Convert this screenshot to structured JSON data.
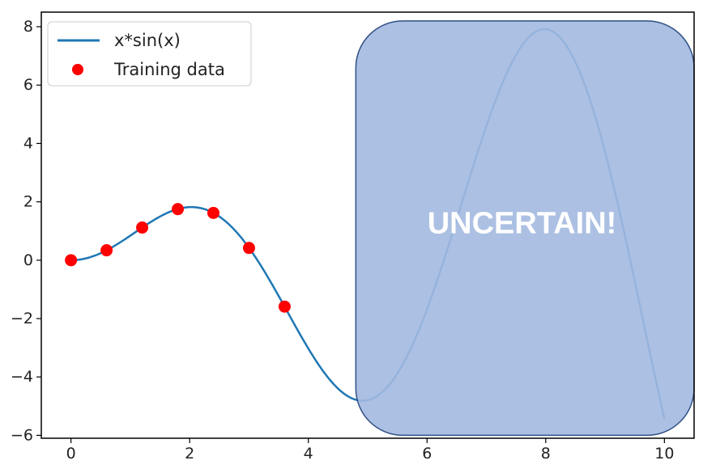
{
  "chart_data": {
    "type": "line",
    "title": "",
    "xlabel": "",
    "ylabel": "",
    "xlim": [
      -0.5,
      10.5
    ],
    "ylim": [
      -6.1,
      8.5
    ],
    "xticks": [
      0,
      2,
      4,
      6,
      8,
      10
    ],
    "yticks": [
      -6,
      -4,
      -2,
      0,
      2,
      4,
      6,
      8
    ],
    "xtick_labels": [
      "0",
      "2",
      "4",
      "6",
      "8",
      "10"
    ],
    "ytick_labels": [
      "−6",
      "−4",
      "−2",
      "0",
      "2",
      "4",
      "6",
      "8"
    ],
    "grid": false,
    "legend_position": "top-left",
    "series": [
      {
        "name": "x*sin(x)",
        "type": "line",
        "function": "x*sin(x)",
        "x_range": [
          0,
          10
        ],
        "color": "#1f77b4"
      },
      {
        "name": "Training data",
        "type": "scatter",
        "color": "#ff0000",
        "points": [
          {
            "x": 0,
            "y": 0
          },
          {
            "x": 0.6,
            "y": 0.34
          },
          {
            "x": 1.2,
            "y": 1.12
          },
          {
            "x": 1.8,
            "y": 1.75
          },
          {
            "x": 2.4,
            "y": 1.62
          },
          {
            "x": 3.0,
            "y": 0.42
          },
          {
            "x": 3.6,
            "y": -1.59
          }
        ]
      }
    ],
    "annotation": {
      "text": "UNCERTAIN!",
      "x_range": [
        4.8,
        10.5
      ],
      "y_range": [
        -6.0,
        8.2
      ],
      "fill": "#a3b9e0",
      "stroke": "#2f4f85"
    }
  }
}
